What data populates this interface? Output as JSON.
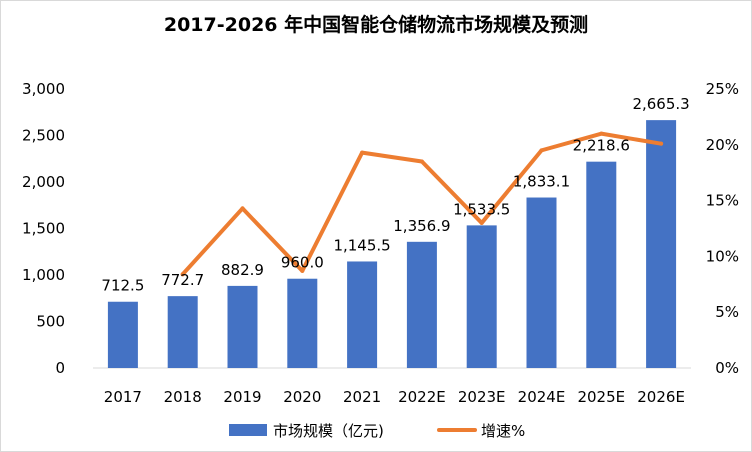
{
  "chart_data": {
    "type": "bar",
    "title": "2017-2026 年中国智能仓储物流市场规模及预测",
    "categories": [
      "2017",
      "2018",
      "2019",
      "2020",
      "2021",
      "2022E",
      "2023E",
      "2024E",
      "2025E",
      "2026E"
    ],
    "series": [
      {
        "name": "市场规模（亿元)",
        "type": "bar",
        "axis": "left",
        "color": "#4472c4",
        "values": [
          712.5,
          772.7,
          882.9,
          960.0,
          1145.5,
          1356.9,
          1533.5,
          1833.1,
          2218.6,
          2665.3
        ],
        "labels": [
          "712.5",
          "772.7",
          "882.9",
          "960.0",
          "1,145.5",
          "1,356.9",
          "1,533.5",
          "1,833.1",
          "2,218.6",
          "2,665.3"
        ]
      },
      {
        "name": "增速%",
        "type": "line",
        "axis": "right",
        "color": "#ed7d31",
        "values": [
          null,
          8.4,
          14.3,
          8.7,
          19.3,
          18.5,
          13.0,
          19.5,
          21.0,
          20.1
        ]
      }
    ],
    "y_left": {
      "ylim": [
        0,
        3000
      ],
      "ticks": [
        0,
        500,
        1000,
        1500,
        2000,
        2500,
        3000
      ],
      "tick_labels": [
        "0",
        "500",
        "1,000",
        "1,500",
        "2,000",
        "2,500",
        "3,000"
      ]
    },
    "y_right": {
      "ylim": [
        0,
        25
      ],
      "ticks": [
        0,
        5,
        10,
        15,
        20,
        25
      ],
      "tick_labels": [
        "0%",
        "5%",
        "10%",
        "15%",
        "20%",
        "25%"
      ]
    },
    "grid": false,
    "legend": "bottom"
  }
}
